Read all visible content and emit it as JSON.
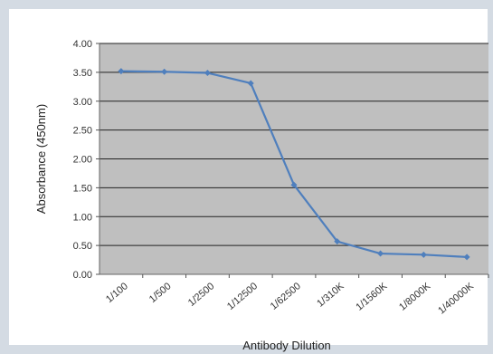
{
  "chart_data": {
    "type": "line",
    "title": "",
    "xlabel": "Antibody Dilution",
    "ylabel": "Absorbance (450nm)",
    "categories": [
      "1/100",
      "1/500",
      "1/2500",
      "1/12500",
      "1/62500",
      "1/310K",
      "1/1560K",
      "1/8000K",
      "1/40000K"
    ],
    "y_ticks": [
      "0.00",
      "0.50",
      "1.00",
      "1.50",
      "2.00",
      "2.50",
      "3.00",
      "3.50",
      "4.00"
    ],
    "ylim": [
      0,
      4
    ],
    "grid": true,
    "legend": "none",
    "series": [
      {
        "values": [
          3.52,
          3.51,
          3.49,
          3.31,
          1.55,
          0.57,
          0.36,
          0.34,
          0.3
        ]
      }
    ],
    "colors": {
      "plot_background": "#bfbfbf",
      "line": "#4f7fbd",
      "gridline": "#222222"
    }
  }
}
